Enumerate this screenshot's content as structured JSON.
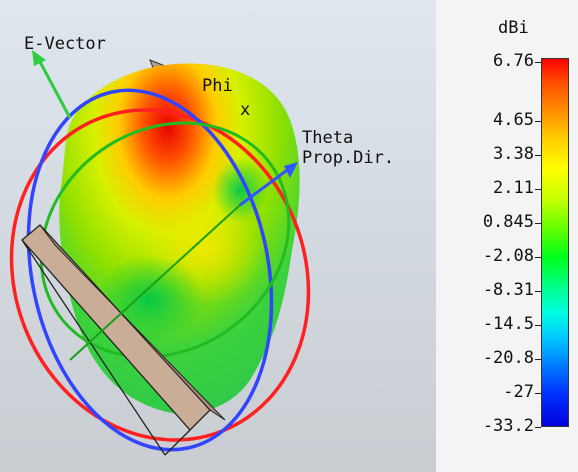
{
  "viewport": {
    "labels": {
      "e_vector": "E-Vector",
      "phi": "Phi",
      "x": "x",
      "theta": "Theta",
      "prop_dir": "Prop.Dir."
    }
  },
  "legend": {
    "unit": "dBi",
    "ticks": [
      "6.76",
      "4.65",
      "3.38",
      "2.11",
      "0.845",
      "-2.08",
      "-8.31",
      "-14.5",
      "-20.8",
      "-27",
      "-33.2"
    ],
    "max_color": "#ff0000",
    "min_color": "#0000dd"
  },
  "colors": {
    "e_vector_arrow": "#2ecc40",
    "prop_dir_arrow": "#3355ff",
    "theta_ring": "#ff2020",
    "phi_ring": "#3344ff",
    "equator_ring": "#22bb22",
    "antenna_plate": "#c9ad96"
  }
}
